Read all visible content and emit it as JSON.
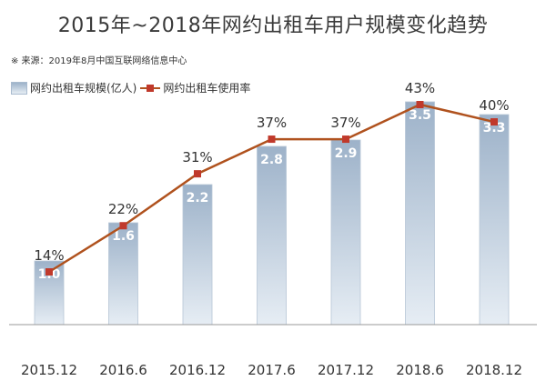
{
  "title": "2015年~2018年网约出租车用户规模变化趋势",
  "source": "※ 来源：2019年8月中国互联网络信息中心",
  "legend": {
    "bar_label": "网约出租车规模(亿人)",
    "line_label": "网约出租车使用率"
  },
  "colors": {
    "bar_top": "#9db2c9",
    "bar_bottom": "#e6edf4",
    "bar_text": "#ffffff",
    "line": "#b0521e",
    "marker": "#c0392b",
    "axis": "#999999",
    "label_text": "#333333"
  },
  "chart_data": {
    "type": "bar",
    "categories": [
      "2015.12",
      "2016.6",
      "2016.12",
      "2017.6",
      "2017.12",
      "2018.6",
      "2018.12"
    ],
    "series": [
      {
        "name": "网约出租车规模(亿人)",
        "type": "bar",
        "values": [
          1.0,
          1.6,
          2.2,
          2.8,
          2.9,
          3.5,
          3.3
        ],
        "labels": [
          "1.0",
          "1.6",
          "2.2",
          "2.8",
          "2.9",
          "3.5",
          "3.3"
        ]
      },
      {
        "name": "网约出租车使用率",
        "type": "line",
        "values": [
          14,
          22,
          31,
          37,
          37,
          43,
          40
        ],
        "labels": [
          "14%",
          "22%",
          "31%",
          "37%",
          "37%",
          "43%",
          "40%"
        ]
      }
    ],
    "bar_ylim": [
      0,
      3.5
    ],
    "line_ylim": [
      0,
      43
    ],
    "grid": false,
    "legend_position": "top-left"
  }
}
